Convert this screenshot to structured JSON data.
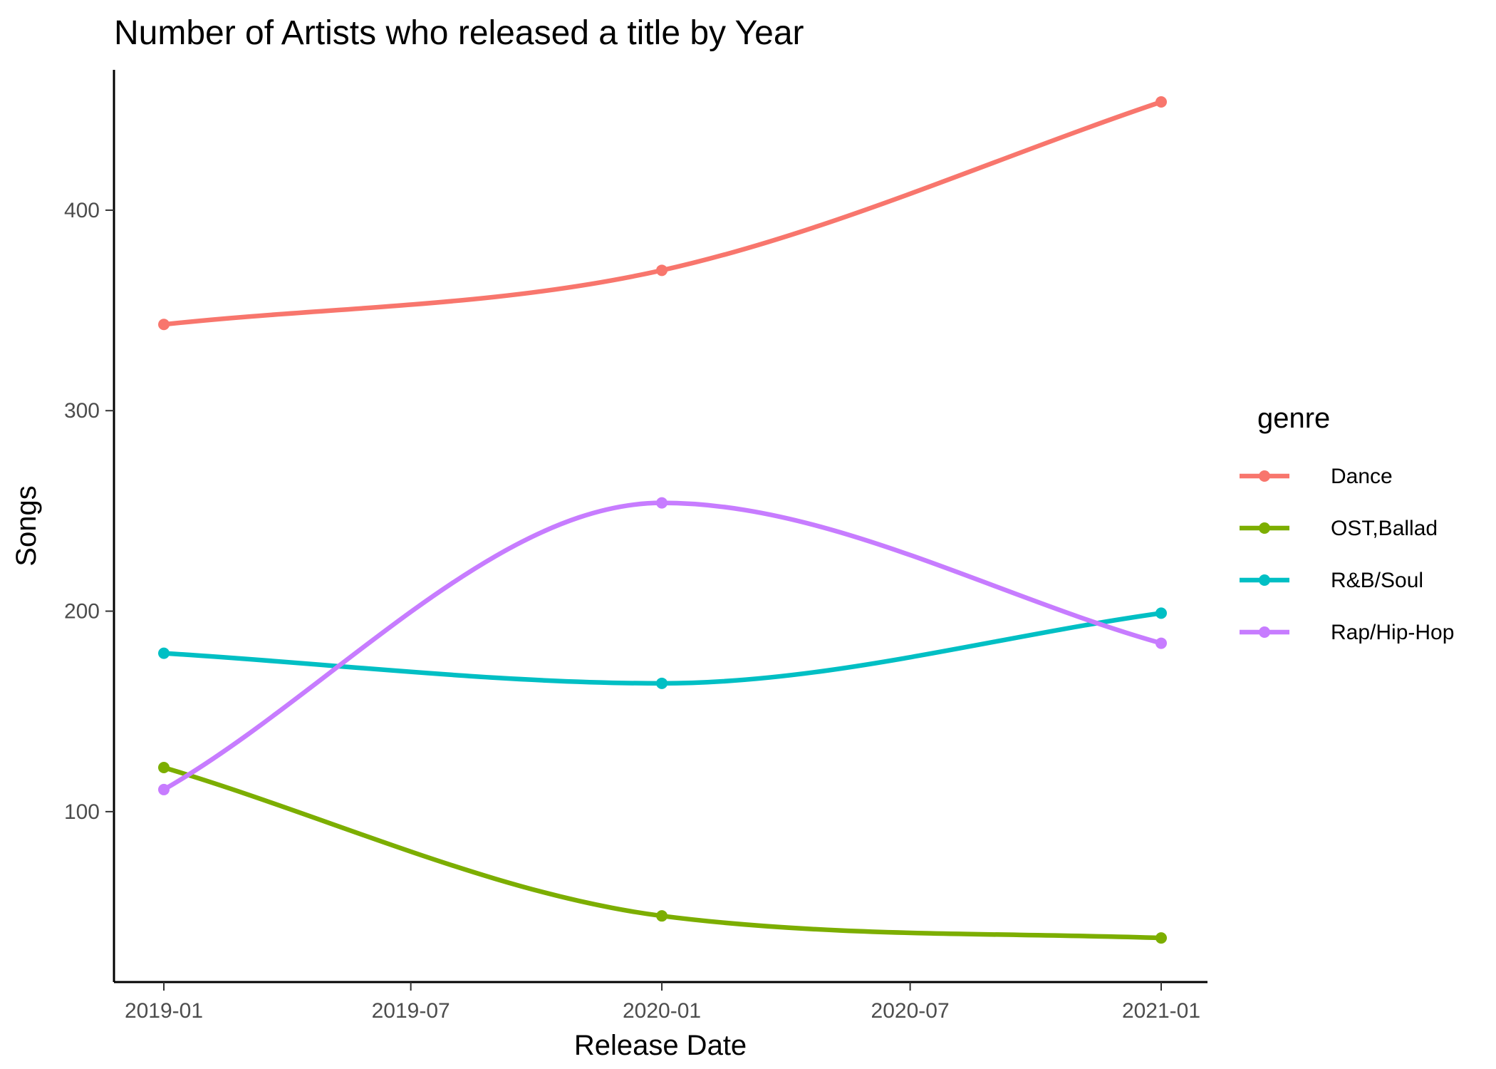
{
  "chart_data": {
    "type": "line",
    "title": "Number of Artists who released a title by Year",
    "xlabel": "Release Date",
    "ylabel": "Songs",
    "x": [
      "2019-01-01",
      "2020-01-01",
      "2021-01-01"
    ],
    "x_ticks": [
      "2019-01",
      "2019-07",
      "2020-01",
      "2020-07",
      "2021-01"
    ],
    "x_tick_dates": [
      "2019-01-01",
      "2019-07-01",
      "2020-01-01",
      "2020-07-01",
      "2021-01-01"
    ],
    "y_ticks": [
      100,
      200,
      300,
      400
    ],
    "ylim": [
      15,
      470
    ],
    "grid": false,
    "legend": {
      "title": "genre",
      "position": "right"
    },
    "series": [
      {
        "name": "Dance",
        "color": "#F8766D",
        "values": [
          343,
          370,
          454
        ]
      },
      {
        "name": "OST,Ballad",
        "color": "#7CAE00",
        "values": [
          122,
          48,
          37
        ]
      },
      {
        "name": "R&B/Soul",
        "color": "#00BFC4",
        "values": [
          179,
          164,
          199
        ]
      },
      {
        "name": "Rap/Hip-Hop",
        "color": "#C77CFF",
        "values": [
          111,
          254,
          184
        ]
      }
    ]
  }
}
